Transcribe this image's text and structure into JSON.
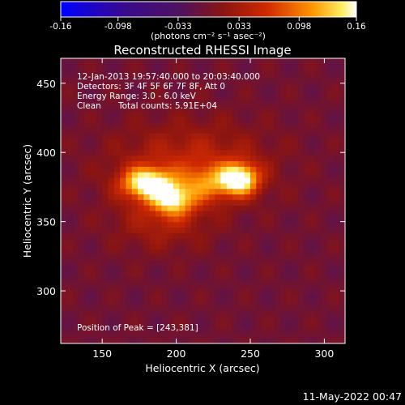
{
  "chart_data": {
    "type": "heatmap",
    "title": "Reconstructed RHESSI Image",
    "xlabel": "Heliocentric X (arcsec)",
    "ylabel": "Heliocentric Y (arcsec)",
    "xlim": [
      122,
      314
    ],
    "ylim": [
      262,
      468
    ],
    "x_ticks": [
      150,
      200,
      250,
      300
    ],
    "y_ticks": [
      300,
      350,
      400,
      450
    ],
    "colorbar": {
      "range": [
        -0.16,
        0.16
      ],
      "tick_values": [
        -0.16,
        -0.098,
        -0.033,
        0.033,
        0.098,
        0.16
      ],
      "tick_labels": [
        "-0.16",
        "-0.098",
        "-0.033",
        "0.033",
        "0.098",
        "0.16"
      ],
      "unit_label": "(photons cm⁻² s⁻¹ asec⁻²)"
    },
    "annotations": {
      "time_range": "12-Jan-2013 19:57:40.000 to 20:03:40.000",
      "detectors": "Detectors: 3F 4F 5F 6F 7F 8F, Att 0",
      "energy": "Energy Range: 3.0 - 6.0 keV",
      "clean_label": "Clean",
      "total_counts": "Total counts: 5.91E+04",
      "peak": "Position of Peak = [243,381]"
    },
    "sources": [
      {
        "x": 180,
        "y": 378,
        "peak": 0.155,
        "sx": 12,
        "sy": 8
      },
      {
        "x": 198,
        "y": 366,
        "peak": 0.12,
        "sx": 10,
        "sy": 8
      },
      {
        "x": 243,
        "y": 381,
        "peak": 0.16,
        "sx": 9,
        "sy": 8
      },
      {
        "x": 222,
        "y": 378,
        "peak": 0.07,
        "sx": 12,
        "sy": 9
      },
      {
        "x": 210,
        "y": 392,
        "peak": 0.055,
        "sx": 35,
        "sy": 20
      },
      {
        "x": 190,
        "y": 350,
        "peak": 0.04,
        "sx": 22,
        "sy": 14
      }
    ],
    "pixel_size_arcsec": 4
  },
  "footer": {
    "timestamp": "11-May-2022 00:47"
  }
}
